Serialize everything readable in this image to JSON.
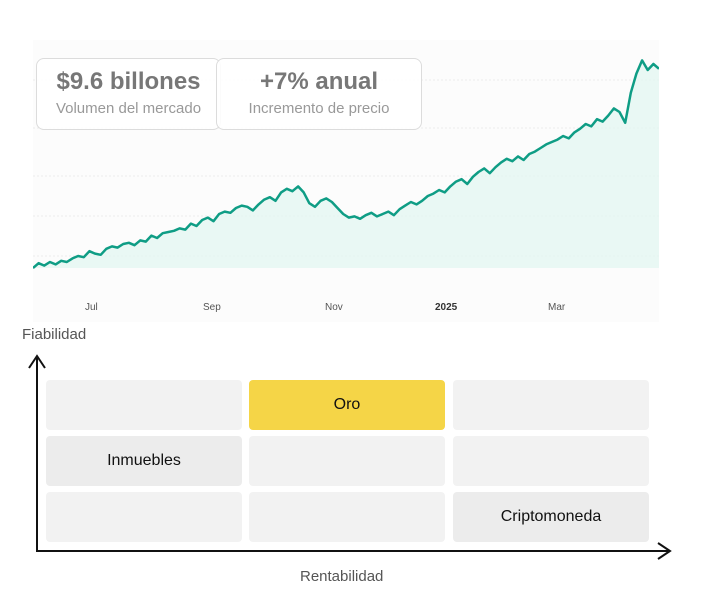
{
  "stats": {
    "volume": {
      "value": "$9.6 billones",
      "label": "Volumen del mercado"
    },
    "growth": {
      "value": "+7% anual",
      "label": "Incremento de precio"
    }
  },
  "chart_data": {
    "type": "area",
    "x_tick_labels": [
      "Jul",
      "Sep",
      "Nov",
      "2025",
      "Mar"
    ],
    "emphasized_tick": "2025",
    "grid": true,
    "line_color": "#0f9d85",
    "fill_color": "#e3f6f1",
    "series": [
      {
        "values": [
          0.0,
          0.04,
          0.02,
          0.05,
          0.03,
          0.06,
          0.05,
          0.08,
          0.1,
          0.09,
          0.14,
          0.12,
          0.11,
          0.16,
          0.18,
          0.17,
          0.2,
          0.21,
          0.19,
          0.23,
          0.22,
          0.27,
          0.25,
          0.29,
          0.3,
          0.31,
          0.33,
          0.32,
          0.37,
          0.35,
          0.4,
          0.42,
          0.39,
          0.45,
          0.47,
          0.46,
          0.5,
          0.52,
          0.51,
          0.48,
          0.53,
          0.57,
          0.59,
          0.56,
          0.63,
          0.66,
          0.64,
          0.68,
          0.63,
          0.54,
          0.51,
          0.56,
          0.58,
          0.55,
          0.5,
          0.45,
          0.42,
          0.43,
          0.41,
          0.44,
          0.46,
          0.43,
          0.45,
          0.47,
          0.44,
          0.49,
          0.52,
          0.55,
          0.53,
          0.56,
          0.6,
          0.62,
          0.65,
          0.63,
          0.68,
          0.72,
          0.74,
          0.7,
          0.76,
          0.8,
          0.83,
          0.79,
          0.84,
          0.88,
          0.91,
          0.89,
          0.93,
          0.9,
          0.95,
          0.97,
          1.0,
          1.03,
          1.05,
          1.07,
          1.1,
          1.08,
          1.13,
          1.16,
          1.2,
          1.18,
          1.24,
          1.22,
          1.27,
          1.33,
          1.3,
          1.21,
          1.46,
          1.62,
          1.73,
          1.65,
          1.7,
          1.66
        ]
      }
    ]
  },
  "axes": {
    "y_label": "Fiabilidad",
    "x_label": "Rentabilidad"
  },
  "grid_cells": [
    {
      "label": "",
      "row": 0,
      "col": 0
    },
    {
      "label": "Oro",
      "row": 0,
      "col": 1
    },
    {
      "label": "",
      "row": 0,
      "col": 2
    },
    {
      "label": "Inmuebles",
      "row": 1,
      "col": 0
    },
    {
      "label": "",
      "row": 1,
      "col": 1
    },
    {
      "label": "",
      "row": 1,
      "col": 2
    },
    {
      "label": "",
      "row": 2,
      "col": 0
    },
    {
      "label": "",
      "row": 2,
      "col": 1
    },
    {
      "label": "Criptomoneda",
      "row": 2,
      "col": 2
    }
  ],
  "highlight_color": "#f5d547"
}
